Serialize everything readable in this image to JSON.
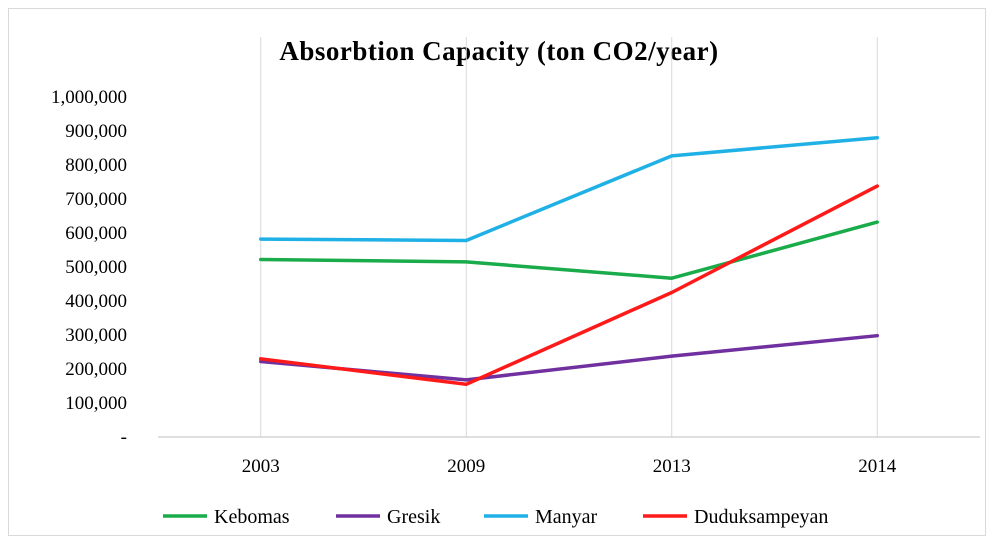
{
  "chart_data": {
    "type": "line",
    "title": "Absorbtion  Capacity (ton CO2/year)",
    "categories": [
      "2003",
      "2009",
      "2013",
      "2014"
    ],
    "ylim": [
      0,
      1000000
    ],
    "y_ticks": [
      0,
      100000,
      200000,
      300000,
      400000,
      500000,
      600000,
      700000,
      800000,
      900000,
      1000000
    ],
    "y_tick_labels": [
      "-",
      "100,000",
      "200,000",
      "300,000",
      "400,000",
      "500,000",
      "600,000",
      "700,000",
      "800,000",
      "900,000",
      "1,000,000"
    ],
    "grid": "vertical",
    "legend_position": "bottom",
    "series": [
      {
        "name": "Kebomas",
        "color": "#1aab4a",
        "values": [
          522000,
          515000,
          467000,
          632000
        ]
      },
      {
        "name": "Gresik",
        "color": "#7030a0",
        "values": [
          222000,
          168000,
          238000,
          298000
        ]
      },
      {
        "name": "Manyar",
        "color": "#1fb1e6",
        "values": [
          582000,
          578000,
          827000,
          880000
        ]
      },
      {
        "name": "Duduksampeyan",
        "color": "#ff1a1a",
        "values": [
          230000,
          155000,
          425000,
          738000
        ]
      }
    ]
  }
}
